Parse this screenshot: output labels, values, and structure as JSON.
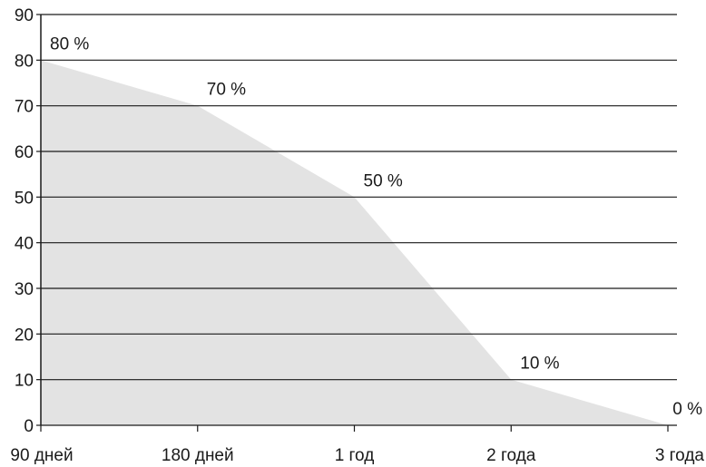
{
  "chart_data": {
    "type": "area",
    "title": "",
    "xlabel": "",
    "ylabel": "",
    "categories": [
      "90 дней",
      "180 дней",
      "1 год",
      "2 года",
      "3 года"
    ],
    "values": [
      80,
      70,
      50,
      10,
      0
    ],
    "data_labels": [
      "80 %",
      "70 %",
      "50 %",
      "10 %",
      "0 %"
    ],
    "ylim": [
      0,
      90
    ],
    "yticks": [
      "0",
      "10",
      "20",
      "30",
      "40",
      "50",
      "60",
      "70",
      "80",
      "90"
    ],
    "grid": true,
    "legend": "none",
    "colors": {
      "fill": "#e3e3e3",
      "grid": "#1a1a1a",
      "text": "#1a1a1a"
    }
  }
}
